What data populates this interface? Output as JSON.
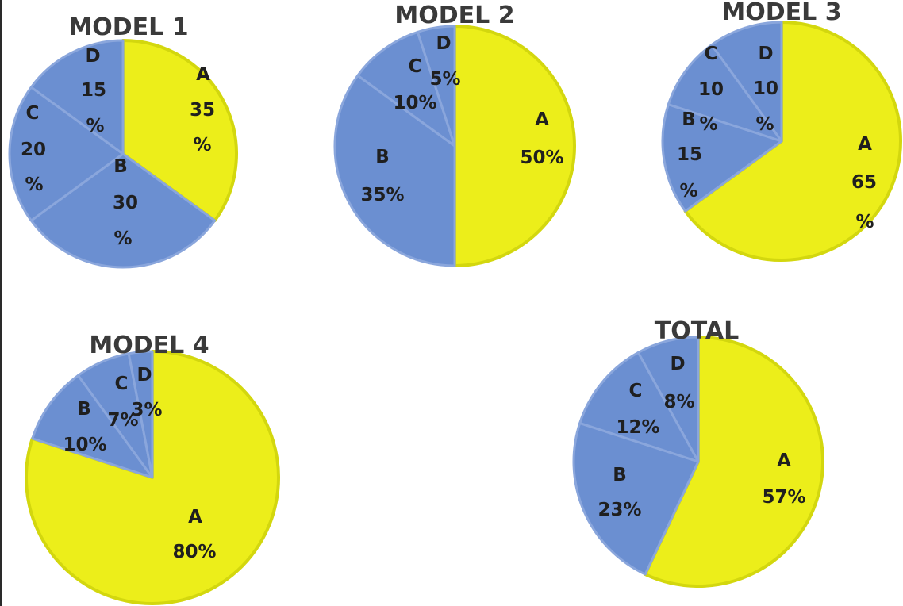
{
  "colors": {
    "A": "#ecee1a",
    "A_border": "#d3d70e",
    "others": "#6b8fd1",
    "others_border": "#5677bd",
    "separator": "#8aa6dc"
  },
  "chart_data": [
    {
      "type": "pie",
      "title": "MODEL 1",
      "categories": [
        "A",
        "B",
        "C",
        "D"
      ],
      "values": [
        35,
        30,
        20,
        15
      ],
      "value_labels": [
        "35 %",
        "30 %",
        "20 %",
        "15 %"
      ]
    },
    {
      "type": "pie",
      "title": "MODEL 2",
      "categories": [
        "A",
        "B",
        "C",
        "D"
      ],
      "values": [
        50,
        35,
        10,
        5
      ],
      "value_labels": [
        "50%",
        "35%",
        "10%",
        "5%"
      ]
    },
    {
      "type": "pie",
      "title": "MODEL 3",
      "categories": [
        "A",
        "B",
        "C",
        "D"
      ],
      "values": [
        65,
        15,
        10,
        10
      ],
      "value_labels": [
        "65 %",
        "15 %",
        "10 %",
        "10 %"
      ]
    },
    {
      "type": "pie",
      "title": "MODEL 4",
      "categories": [
        "A",
        "B",
        "C",
        "D"
      ],
      "values": [
        80,
        10,
        7,
        3
      ],
      "value_labels": [
        "80%",
        "10%",
        "7%",
        "3%"
      ]
    },
    {
      "type": "pie",
      "title": "TOTAL",
      "categories": [
        "A",
        "B",
        "C",
        "D"
      ],
      "values": [
        57,
        23,
        12,
        8
      ],
      "value_labels": [
        "57%",
        "23%",
        "12%",
        "8%"
      ]
    }
  ]
}
